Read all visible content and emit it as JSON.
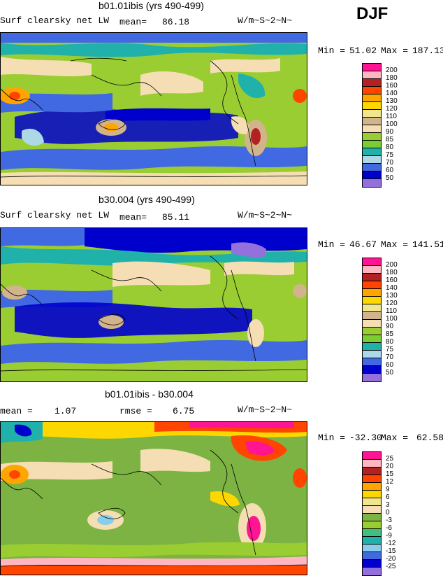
{
  "season": "DJF",
  "panels": [
    {
      "title": "b01.01ibis (yrs 490-499)",
      "left_label": "Surf clearsky net LW",
      "stat1_label": "mean=",
      "stat1_value": "86.18",
      "stat2_label": "",
      "stat2_value": "",
      "units": "W/m~S~2~N~",
      "min_label": "Min =",
      "min_value": "51.02",
      "max_label": "Max =",
      "max_value": "187.13",
      "colorbar": {
        "levels": [
          "200",
          "180",
          "160",
          "140",
          "130",
          "120",
          "110",
          "100",
          "90",
          "85",
          "80",
          "75",
          "70",
          "60",
          "50"
        ],
        "colors": [
          "#ff1493",
          "#ffb6c1",
          "#b22222",
          "#ff4500",
          "#ffa500",
          "#ffd700",
          "#f0e68c",
          "#d2b48c",
          "#f5deb3",
          "#9acd32",
          "#7ccd32",
          "#20b2aa",
          "#add8e6",
          "#4169e1",
          "#0000cd",
          "#9370db"
        ]
      }
    },
    {
      "title": "b30.004 (yrs 490-499)",
      "left_label": "Surf clearsky net LW",
      "stat1_label": "mean=",
      "stat1_value": "85.11",
      "stat2_label": "",
      "stat2_value": "",
      "units": "W/m~S~2~N~",
      "min_label": "Min =",
      "min_value": "46.67",
      "max_label": "Max =",
      "max_value": "141.51",
      "colorbar": {
        "levels": [
          "200",
          "180",
          "160",
          "140",
          "130",
          "120",
          "110",
          "100",
          "90",
          "85",
          "80",
          "75",
          "70",
          "60",
          "50"
        ],
        "colors": [
          "#ff1493",
          "#ffb6c1",
          "#b22222",
          "#ff4500",
          "#ffa500",
          "#ffd700",
          "#f0e68c",
          "#d2b48c",
          "#f5deb3",
          "#9acd32",
          "#7ccd32",
          "#20b2aa",
          "#add8e6",
          "#4169e1",
          "#0000cd",
          "#9370db"
        ]
      }
    },
    {
      "title": "b01.01ibis - b30.004",
      "left_label": "",
      "stat1_label": "mean =",
      "stat1_value": "1.07",
      "stat2_label": "rmse =",
      "stat2_value": "6.75",
      "units": "W/m~S~2~N~",
      "min_label": "Min =",
      "min_value": "-32.30",
      "max_label": "Max =",
      "max_value": "62.58",
      "colorbar": {
        "levels": [
          "25",
          "20",
          "15",
          "12",
          "9",
          "6",
          "3",
          "0",
          "-3",
          "-6",
          "-9",
          "-12",
          "-15",
          "-20",
          "-25"
        ],
        "colors": [
          "#ff1493",
          "#ffb6c1",
          "#b22222",
          "#ff4500",
          "#ffa500",
          "#ffd700",
          "#f0e68c",
          "#f5deb3",
          "#7cb342",
          "#9acd32",
          "#40c080",
          "#20b2aa",
          "#87ceeb",
          "#4169e1",
          "#0000cd",
          "#9370db"
        ]
      }
    }
  ]
}
